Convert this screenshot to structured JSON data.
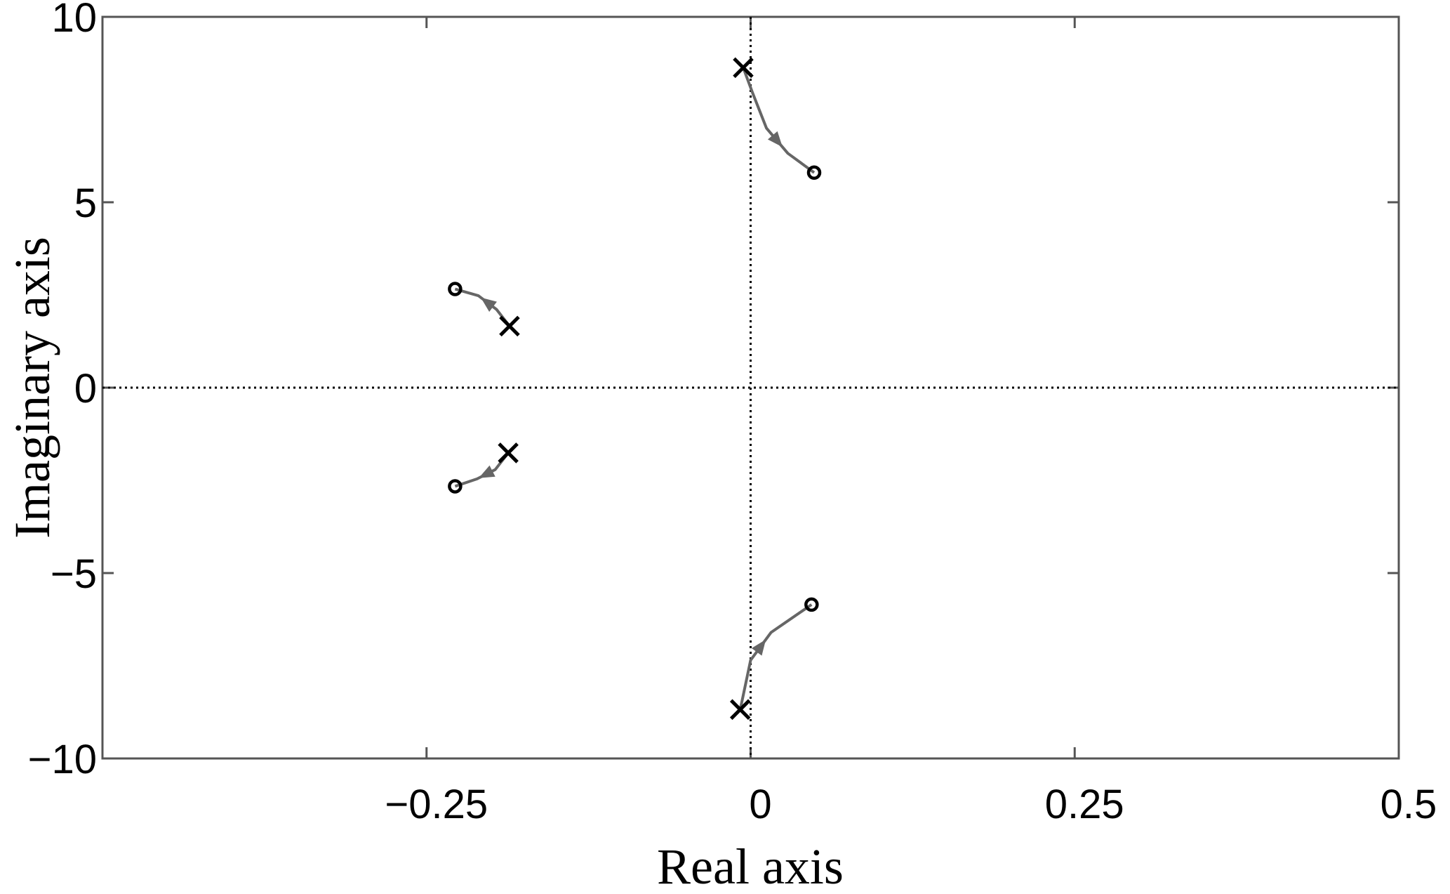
{
  "chart_data": {
    "type": "pole-zero",
    "x_label": "Real axis",
    "y_label": "Imaginary axis",
    "xlim": [
      -0.5,
      0.5
    ],
    "ylim": [
      -10,
      10
    ],
    "xticks": [
      {
        "value": -0.25,
        "label": "−0.25"
      },
      0,
      0.25,
      0.5
    ],
    "yticks": [
      {
        "value": -10,
        "label": "−10"
      },
      {
        "value": -5,
        "label": "−5"
      },
      0,
      5,
      10
    ],
    "zero_lines": true,
    "series": [
      {
        "name": "poles",
        "marker": "x",
        "color": "#000000",
        "x": [
          -0.0057,
          -0.186,
          -0.187,
          -0.008
        ],
        "values": [
          8.63,
          1.66,
          -1.76,
          -8.68
        ]
      },
      {
        "name": "zeros",
        "marker": "o",
        "color": "#000000",
        "x": [
          0.049,
          -0.228,
          -0.228,
          0.047
        ],
        "values": [
          5.8,
          2.66,
          -2.66,
          -5.85
        ]
      }
    ],
    "branches": [
      {
        "color": "#666666",
        "x": [
          -0.0057,
          0.0014,
          0.0122,
          0.0287,
          0.049
        ],
        "values": [
          8.63,
          7.96,
          7.0,
          6.32,
          5.8
        ]
      },
      {
        "color": "#666666",
        "x": [
          -0.186,
          -0.196,
          -0.21,
          -0.228
        ],
        "values": [
          1.66,
          2.11,
          2.48,
          2.66
        ]
      },
      {
        "color": "#666666",
        "x": [
          -0.187,
          -0.197,
          -0.211,
          -0.228
        ],
        "values": [
          -1.76,
          -2.21,
          -2.46,
          -2.66
        ]
      },
      {
        "color": "#666666",
        "x": [
          -0.008,
          0,
          0.0158,
          0.047
        ],
        "values": [
          -8.68,
          -7.35,
          -6.6,
          -5.85
        ]
      }
    ]
  }
}
